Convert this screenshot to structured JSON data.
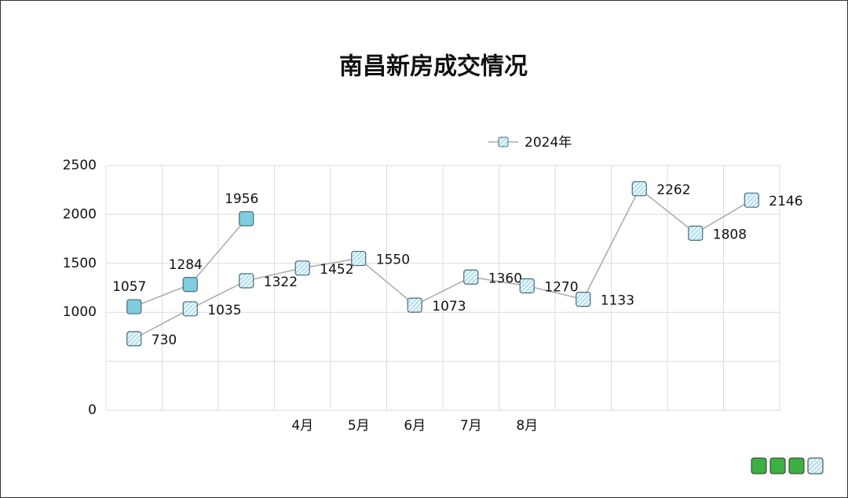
{
  "chart_data": {
    "type": "line",
    "title": "南昌新房成交情况",
    "categories": [
      null,
      null,
      null,
      "4月",
      "5月",
      "6月",
      "7月",
      "8月",
      null,
      null,
      null,
      null
    ],
    "series": [
      {
        "name": "2024年",
        "color": "#bfe6f2",
        "pattern": "hatch",
        "values": [
          730,
          1035,
          1322,
          1452,
          1550,
          1073,
          1360,
          1270,
          1133,
          2262,
          1808,
          2146
        ]
      },
      {
        "color": "#7fcde0",
        "values": [
          1057,
          1284,
          1956,
          null,
          null,
          null,
          null,
          null,
          null,
          null,
          null,
          null
        ]
      }
    ],
    "ylim": [
      0,
      2500
    ],
    "yticks": [
      0,
      {
        "value": 500,
        "label": null
      },
      1000,
      1500,
      2000,
      2500
    ],
    "grid": true,
    "legend": "top"
  }
}
